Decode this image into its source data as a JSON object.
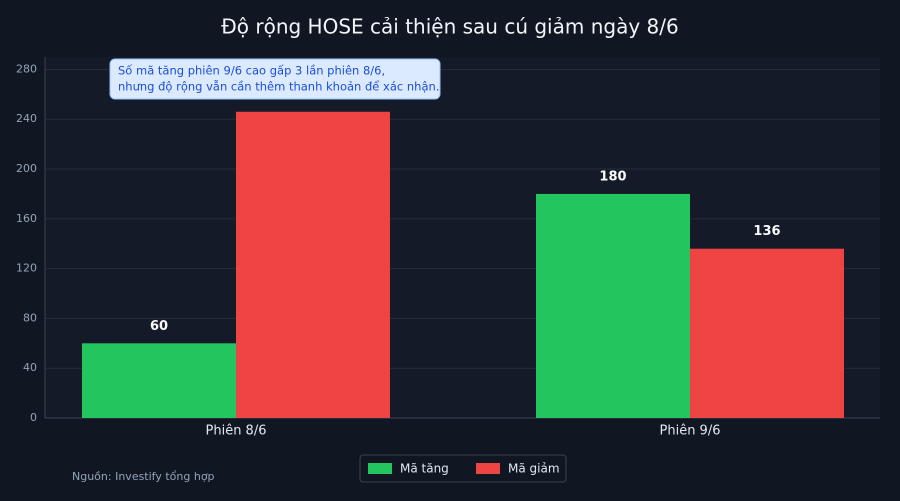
{
  "chart_data": {
    "type": "bar",
    "title": "Độ rộng HOSE cải thiện sau cú giảm ngày 8/6",
    "categories": [
      "Phiên 8/6",
      "Phiên 9/6"
    ],
    "series": [
      {
        "name": "Mã tăng",
        "color": "#22c55e",
        "values": [
          60,
          180
        ],
        "labeled": [
          true,
          true
        ]
      },
      {
        "name": "Mã giảm",
        "color": "#ef4444",
        "values": [
          246,
          136
        ],
        "labeled": [
          false,
          true
        ]
      }
    ],
    "ylim": [
      0,
      290
    ],
    "yticks": [
      0,
      40,
      80,
      120,
      160,
      200,
      240,
      280
    ],
    "grid": true,
    "annotation": [
      "Số mã tăng phiên 9/6 cao gấp 3 lần phiên 8/6,",
      "nhưng độ rộng vẫn cần thêm thanh khoản để xác nhận."
    ],
    "source": "Nguồn: Investify tổng hợp",
    "legend": "bottom"
  }
}
